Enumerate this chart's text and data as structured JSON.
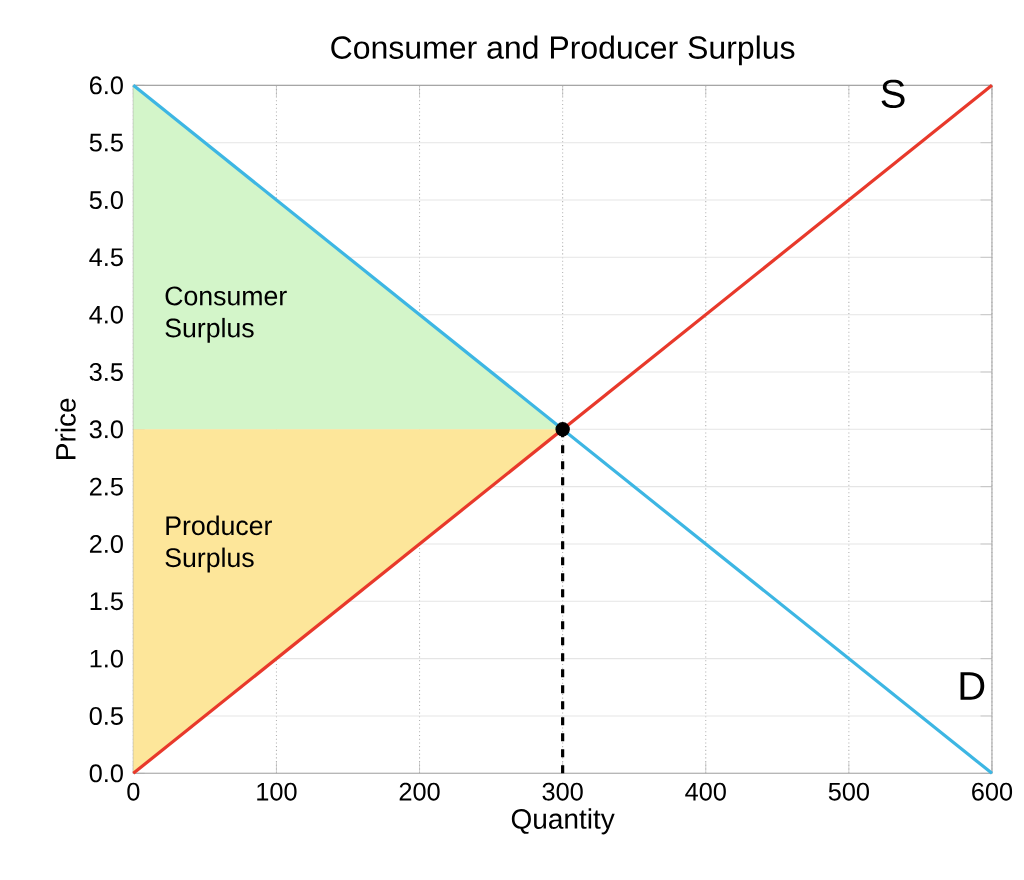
{
  "chart_data": {
    "type": "line",
    "title": "Consumer and Producer Surplus",
    "xlabel": "Quantity",
    "ylabel": "Price",
    "xlim": [
      0,
      600
    ],
    "ylim": [
      0,
      6
    ],
    "xticks": [
      0,
      100,
      200,
      300,
      400,
      500,
      600
    ],
    "yticks": [
      {
        "value": 0,
        "label": "0.0"
      },
      {
        "value": 0.5,
        "label": "0.5"
      },
      {
        "value": 1,
        "label": "1.0"
      },
      {
        "value": 1.5,
        "label": "1.5"
      },
      {
        "value": 2,
        "label": "2.0"
      },
      {
        "value": 2.5,
        "label": "2.5"
      },
      {
        "value": 3,
        "label": "3.0"
      },
      {
        "value": 3.5,
        "label": "3.5"
      },
      {
        "value": 4,
        "label": "4.0"
      },
      {
        "value": 4.5,
        "label": "4.5"
      },
      {
        "value": 5,
        "label": "5.0"
      },
      {
        "value": 5.5,
        "label": "5.5"
      },
      {
        "value": 6,
        "label": "6.0"
      }
    ],
    "grid": true,
    "legend": false,
    "series": [
      {
        "type": "area",
        "name": "Consumer Surplus",
        "color": "#d3f5c9",
        "x": [
          0,
          300,
          0
        ],
        "values": [
          6,
          3,
          3
        ]
      },
      {
        "type": "area",
        "name": "Producer Surplus",
        "color": "#fde69a",
        "x": [
          0,
          300,
          0
        ],
        "values": [
          3,
          3,
          0
        ]
      },
      {
        "name": "D",
        "color": "#3db6e3",
        "x": [
          0,
          600
        ],
        "values": [
          6,
          0
        ]
      },
      {
        "name": "S",
        "color": "#e8392b",
        "x": [
          0,
          600
        ],
        "values": [
          0,
          6
        ]
      },
      {
        "type": "line",
        "color": "#000000",
        "x": [
          300,
          300
        ],
        "values": [
          0,
          3
        ],
        "line_style": "dashed"
      },
      {
        "type": "scatter",
        "color": "#000000",
        "x": [
          300
        ],
        "values": [
          3
        ]
      }
    ]
  }
}
